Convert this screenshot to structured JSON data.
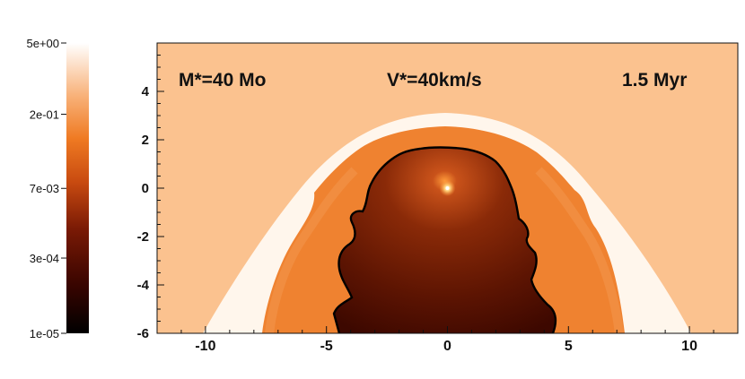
{
  "chart_data": {
    "type": "heatmap",
    "title": "",
    "xlabel": "",
    "ylabel": "",
    "xlim": [
      -12,
      12
    ],
    "ylim": [
      -6,
      6
    ],
    "x_ticks": [
      -10,
      -5,
      0,
      5,
      10
    ],
    "x_tick_labels": [
      "-10",
      "-5",
      "0",
      "5",
      "10"
    ],
    "y_ticks": [
      -6,
      -4,
      -2,
      0,
      2,
      4
    ],
    "y_tick_labels": [
      "-6",
      "-4",
      "-2",
      "0",
      "2",
      "4"
    ],
    "colorbar": {
      "scale": "log",
      "range": [
        1e-05,
        5
      ],
      "tick_values": [
        5,
        0.2,
        0.007,
        0.0003,
        1e-05
      ],
      "tick_labels": [
        "5e+00",
        "2e-01",
        "7e-03",
        "3e-04",
        "1e-05"
      ],
      "colors": [
        "#000000",
        "#3a0500",
        "#7a1a05",
        "#c84a10",
        "#ef7a22",
        "#f8b27a",
        "#ffffff"
      ]
    },
    "annotations": {
      "mass": "M*=40 Mo",
      "velocity": "V*=40km/s",
      "time": "1.5 Myr"
    },
    "star_position": [
      0,
      0
    ],
    "colors": {
      "ambient": "#fbc28f",
      "outer_shell": "#fff6ec",
      "shocked_layer": "#ef8230",
      "bubble_inner": "#8a2a08",
      "bubble_edge": "#3d0800",
      "contour": "#000000"
    }
  }
}
